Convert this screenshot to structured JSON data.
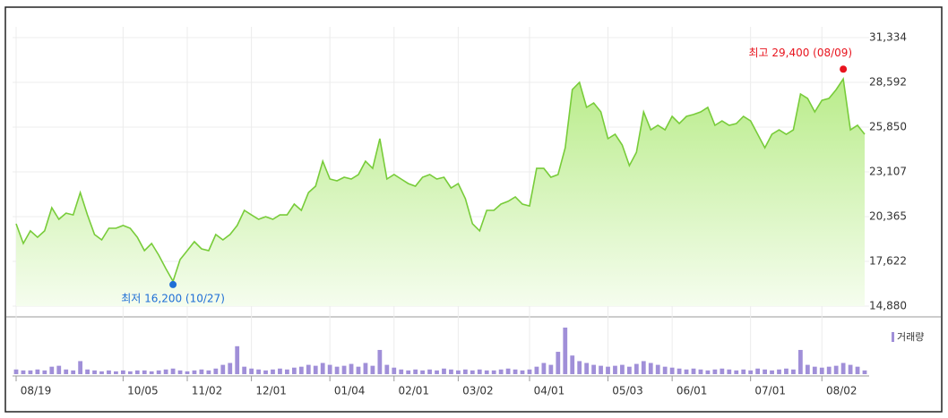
{
  "chart_data": {
    "type": "stock-area",
    "categories": [
      "08/19",
      null,
      null,
      null,
      null,
      null,
      null,
      null,
      null,
      null,
      null,
      null,
      null,
      null,
      null,
      "10/05",
      null,
      null,
      null,
      null,
      null,
      null,
      null,
      null,
      "11/02",
      null,
      null,
      null,
      null,
      null,
      null,
      null,
      null,
      "12/01",
      null,
      null,
      null,
      null,
      null,
      null,
      null,
      null,
      null,
      null,
      "01/04",
      null,
      null,
      null,
      null,
      null,
      null,
      null,
      null,
      "02/01",
      null,
      null,
      null,
      null,
      null,
      null,
      null,
      null,
      "03/02",
      null,
      null,
      null,
      null,
      null,
      null,
      null,
      null,
      null,
      "04/01",
      null,
      null,
      null,
      null,
      null,
      null,
      null,
      null,
      null,
      null,
      "05/03",
      null,
      null,
      null,
      null,
      null,
      null,
      null,
      null,
      "06/01",
      null,
      null,
      null,
      null,
      null,
      null,
      null,
      null,
      null,
      null,
      "07/01",
      null,
      null,
      null,
      null,
      null,
      null,
      null,
      null,
      null,
      "08/02",
      null,
      null,
      null,
      null,
      null,
      null
    ],
    "price": {
      "color": "#78cc3a",
      "values": [
        19925,
        18720,
        19490,
        19100,
        19490,
        20910,
        20200,
        20580,
        20470,
        21840,
        20470,
        19270,
        18940,
        19650,
        19650,
        19820,
        19650,
        19100,
        18280,
        18720,
        18000,
        17180,
        16400,
        17730,
        18280,
        18830,
        18390,
        18280,
        19270,
        18940,
        19270,
        19820,
        20750,
        20470,
        20200,
        20360,
        20200,
        20470,
        20470,
        21130,
        20750,
        21840,
        22230,
        23760,
        22670,
        22560,
        22780,
        22670,
        22940,
        23760,
        23320,
        25140,
        22670,
        22940,
        22670,
        22390,
        22230,
        22780,
        22940,
        22670,
        22780,
        22120,
        22390,
        21460,
        19925,
        19490,
        20750,
        20750,
        21130,
        21300,
        21570,
        21130,
        21020,
        23320,
        23320,
        22780,
        22940,
        24580,
        28150,
        28590,
        27060,
        27330,
        26780,
        25140,
        25410,
        24750,
        23490,
        24310,
        26780,
        25680,
        25960,
        25680,
        26510,
        26070,
        26510,
        26620,
        26780,
        27060,
        25960,
        26230,
        25960,
        26070,
        26510,
        26230,
        25410,
        24580,
        25410,
        25680,
        25410,
        25680,
        27880,
        27610,
        26780,
        27490,
        27610,
        28150,
        28800,
        25680,
        25960,
        25410
      ]
    },
    "volume": {
      "name": "거래량",
      "color": "#a08fd8",
      "values": [
        5,
        4,
        4,
        5,
        4,
        8,
        9,
        5,
        4,
        14,
        5,
        4,
        3,
        4,
        3,
        4,
        3,
        4,
        4,
        3,
        4,
        5,
        6,
        4,
        3,
        4,
        5,
        4,
        6,
        10,
        12,
        30,
        8,
        6,
        5,
        4,
        5,
        6,
        5,
        7,
        8,
        10,
        9,
        12,
        10,
        8,
        9,
        11,
        8,
        12,
        9,
        26,
        10,
        7,
        5,
        4,
        5,
        4,
        5,
        4,
        6,
        5,
        4,
        5,
        4,
        5,
        4,
        4,
        5,
        6,
        5,
        4,
        5,
        8,
        12,
        10,
        24,
        50,
        20,
        14,
        12,
        10,
        9,
        8,
        9,
        10,
        8,
        11,
        14,
        12,
        10,
        8,
        7,
        6,
        5,
        6,
        5,
        4,
        5,
        6,
        5,
        4,
        5,
        4,
        6,
        5,
        4,
        5,
        6,
        5,
        26,
        10,
        8,
        7,
        8,
        9,
        12,
        10,
        8,
        4
      ]
    },
    "low_annotation": {
      "label": "최저 16,200 (10/27)",
      "value": 16200,
      "color": "#1f6fd6"
    },
    "high_annotation": {
      "label": "최고 29,400 (08/09)",
      "value": 29400,
      "color": "#e8141e"
    },
    "ylim": [
      14880,
      31334
    ],
    "yticks": [
      {
        "value": 14880,
        "label": "14,880"
      },
      {
        "value": 17622,
        "label": "17,622"
      },
      {
        "value": 20365,
        "label": "20,365"
      },
      {
        "value": 23107,
        "label": "23,107"
      },
      {
        "value": 25850,
        "label": "25,850"
      },
      {
        "value": 28592,
        "label": "28,592"
      },
      {
        "value": 31334,
        "label": "31,334"
      }
    ],
    "grid": true
  }
}
